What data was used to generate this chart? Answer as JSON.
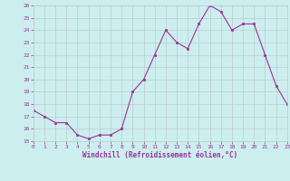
{
  "x": [
    0,
    1,
    2,
    3,
    4,
    5,
    6,
    7,
    8,
    9,
    10,
    11,
    12,
    13,
    14,
    15,
    16,
    17,
    18,
    19,
    20,
    21,
    22,
    23
  ],
  "y": [
    17.5,
    17.0,
    16.5,
    16.5,
    15.5,
    15.2,
    15.5,
    15.5,
    16.0,
    19.0,
    20.0,
    22.0,
    24.0,
    23.0,
    22.5,
    24.5,
    26.0,
    25.5,
    24.0,
    24.5,
    24.5,
    22.0,
    19.5,
    18.0
  ],
  "ylim": [
    15,
    26
  ],
  "yticks": [
    15,
    16,
    17,
    18,
    19,
    20,
    21,
    22,
    23,
    24,
    25,
    26
  ],
  "xticks": [
    0,
    1,
    2,
    3,
    4,
    5,
    6,
    7,
    8,
    9,
    10,
    11,
    12,
    13,
    14,
    15,
    16,
    17,
    18,
    19,
    20,
    21,
    22,
    23
  ],
  "xlabel": "Windchill (Refroidissement éolien,°C)",
  "line_color": "#993399",
  "marker_color": "#993399",
  "bg_color": "#cceeee",
  "grid_color": "#bbcccc",
  "text_color": "#993399",
  "tick_color": "#993399",
  "figsize": [
    3.2,
    2.0
  ],
  "dpi": 100
}
